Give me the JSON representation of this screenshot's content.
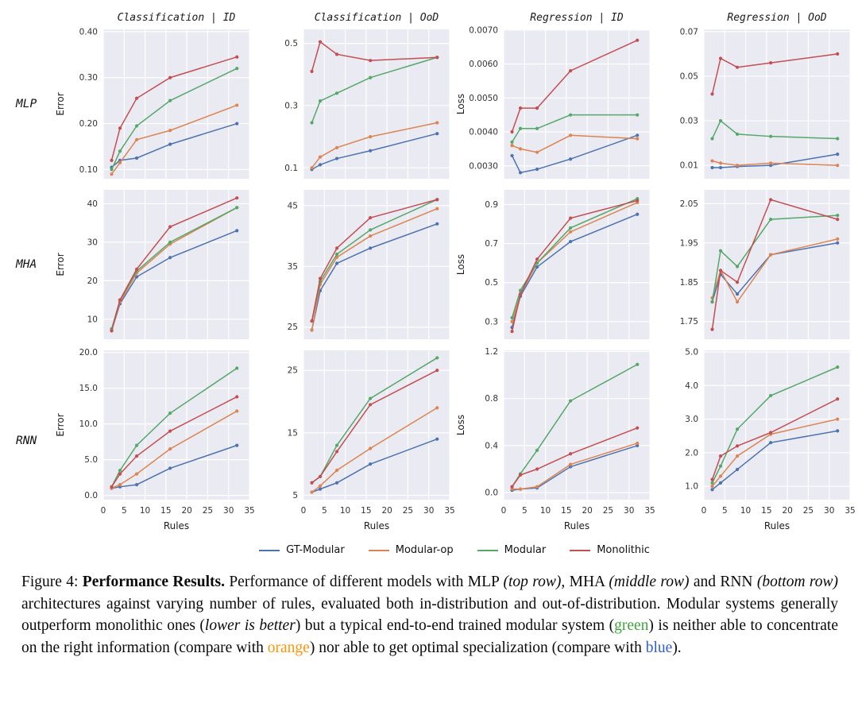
{
  "figure": {
    "row_labels": [
      "MLP",
      "MHA",
      "RNN"
    ],
    "column_titles": [
      "Classification | ID",
      "Classification | OoD",
      "Regression | ID",
      "Regression | OoD"
    ]
  },
  "legend": {
    "items": [
      {
        "label": "GT-Modular",
        "color": "#4C72B0"
      },
      {
        "label": "Modular-op",
        "color": "#DD8452"
      },
      {
        "label": "Modular",
        "color": "#55A868"
      },
      {
        "label": "Monolithic",
        "color": "#C44E52"
      }
    ]
  },
  "chart_data": {
    "type": "line",
    "x_label": "Rules",
    "x": [
      2,
      4,
      8,
      16,
      32
    ],
    "x_ticks": [
      0,
      5,
      10,
      15,
      20,
      25,
      30,
      35
    ],
    "xlim": [
      0,
      35
    ],
    "grid": true,
    "plot_bg": "#EAEAF2",
    "grid_color": "#FFFFFF",
    "series_names": [
      "GT-Modular",
      "Modular-op",
      "Modular",
      "Monolithic"
    ],
    "series_colors": [
      "#4C72B0",
      "#DD8452",
      "#55A868",
      "#C44E52"
    ],
    "plots": [
      {
        "row": "MLP",
        "col": "Classification | ID",
        "ylabel": "Error",
        "yticks": [
          "0.10",
          "0.20",
          "0.30",
          "0.40"
        ],
        "ylim": [
          0.08,
          0.405
        ],
        "series": [
          [
            0.105,
            0.12,
            0.125,
            0.155,
            0.2
          ],
          [
            0.09,
            0.115,
            0.165,
            0.185,
            0.24
          ],
          [
            0.1,
            0.14,
            0.195,
            0.25,
            0.32
          ],
          [
            0.12,
            0.19,
            0.255,
            0.3,
            0.345
          ]
        ]
      },
      {
        "row": "MLP",
        "col": "Classification | OoD",
        "ylabel": null,
        "yticks": [
          "0.1",
          "0.3",
          "0.5"
        ],
        "ylim": [
          0.065,
          0.545
        ],
        "series": [
          [
            0.095,
            0.11,
            0.13,
            0.155,
            0.21
          ],
          [
            0.1,
            0.135,
            0.165,
            0.2,
            0.245
          ],
          [
            0.245,
            0.315,
            0.34,
            0.39,
            0.455
          ],
          [
            0.41,
            0.505,
            0.465,
            0.445,
            0.455
          ]
        ]
      },
      {
        "row": "MLP",
        "col": "Regression | ID",
        "ylabel": "Loss",
        "yticks": [
          "0.0030",
          "0.0040",
          "0.0050",
          "0.0060",
          "0.0070"
        ],
        "ylim": [
          0.00262,
          0.00702
        ],
        "series": [
          [
            0.0033,
            0.0028,
            0.0029,
            0.0032,
            0.0039
          ],
          [
            0.0036,
            0.0035,
            0.0034,
            0.0039,
            0.0038
          ],
          [
            0.0037,
            0.0041,
            0.0041,
            0.0045,
            0.0045
          ],
          [
            0.004,
            0.0047,
            0.0047,
            0.0058,
            0.0067
          ]
        ]
      },
      {
        "row": "MLP",
        "col": "Regression | OoD",
        "ylabel": null,
        "yticks": [
          "0.01",
          "0.03",
          "0.05",
          "0.07"
        ],
        "ylim": [
          0.004,
          0.071
        ],
        "series": [
          [
            0.009,
            0.009,
            0.0095,
            0.01,
            0.015
          ],
          [
            0.012,
            0.011,
            0.01,
            0.011,
            0.01
          ],
          [
            0.022,
            0.03,
            0.024,
            0.023,
            0.022
          ],
          [
            0.042,
            0.058,
            0.054,
            0.056,
            0.06
          ]
        ]
      },
      {
        "row": "MHA",
        "col": "Classification | ID",
        "ylabel": "Error",
        "yticks": [
          "10",
          "20",
          "30",
          "40"
        ],
        "ylim": [
          4.8,
          43.6
        ],
        "series": [
          [
            7,
            14,
            21,
            26,
            33
          ],
          [
            7,
            14.5,
            22,
            29.5,
            39
          ],
          [
            7.5,
            15,
            22.5,
            30,
            39
          ],
          [
            7,
            15,
            23,
            34,
            41.5
          ]
        ]
      },
      {
        "row": "MHA",
        "col": "Classification | OoD",
        "ylabel": null,
        "yticks": [
          "25",
          "35",
          "45"
        ],
        "ylim": [
          23,
          47.6
        ],
        "series": [
          [
            24.5,
            31,
            35.5,
            38,
            42
          ],
          [
            24.5,
            32,
            36.5,
            40,
            44.5
          ],
          [
            26,
            32.5,
            37,
            41,
            46
          ],
          [
            26,
            33,
            38,
            43,
            46
          ]
        ]
      },
      {
        "row": "MHA",
        "col": "Regression | ID",
        "ylabel": "Loss",
        "yticks": [
          "0.3",
          "0.5",
          "0.7",
          "0.9"
        ],
        "ylim": [
          0.21,
          0.975
        ],
        "series": [
          [
            0.27,
            0.43,
            0.58,
            0.71,
            0.85
          ],
          [
            0.3,
            0.44,
            0.6,
            0.76,
            0.91
          ],
          [
            0.32,
            0.46,
            0.6,
            0.78,
            0.93
          ],
          [
            0.25,
            0.44,
            0.62,
            0.83,
            0.92
          ]
        ]
      },
      {
        "row": "MHA",
        "col": "Regression | OoD",
        "ylabel": null,
        "yticks": [
          "1.75",
          "1.85",
          "1.95",
          "2.05"
        ],
        "ylim": [
          1.705,
          2.085
        ],
        "series": [
          [
            1.8,
            1.87,
            1.82,
            1.92,
            1.95
          ],
          [
            1.81,
            1.88,
            1.8,
            1.92,
            1.96
          ],
          [
            1.8,
            1.93,
            1.89,
            2.01,
            2.02
          ],
          [
            1.73,
            1.88,
            1.85,
            2.06,
            2.01
          ]
        ]
      },
      {
        "row": "RNN",
        "col": "Classification | ID",
        "ylabel": "Error",
        "yticks": [
          "0.0",
          "5.0",
          "10.0",
          "15.0",
          "20.0"
        ],
        "ylim": [
          -0.6,
          20.3
        ],
        "series": [
          [
            1.0,
            1.2,
            1.5,
            3.8,
            7.0
          ],
          [
            1.0,
            1.5,
            3.0,
            6.5,
            11.8
          ],
          [
            1.2,
            3.5,
            7.0,
            11.5,
            17.8
          ],
          [
            1.2,
            3.0,
            5.5,
            9.0,
            13.8
          ]
        ]
      },
      {
        "row": "RNN",
        "col": "Classification | OoD",
        "ylabel": null,
        "yticks": [
          "5",
          "15",
          "25"
        ],
        "ylim": [
          4.3,
          28.2
        ],
        "series": [
          [
            5.5,
            6.0,
            7.0,
            10.0,
            14.0
          ],
          [
            5.5,
            6.5,
            9.0,
            12.5,
            19.0
          ],
          [
            7.0,
            8.0,
            13.0,
            20.5,
            27.0
          ],
          [
            7.0,
            8.0,
            12.0,
            19.5,
            25.0
          ]
        ]
      },
      {
        "row": "RNN",
        "col": "Regression | ID",
        "ylabel": "Loss",
        "yticks": [
          "0.0",
          "0.4",
          "0.8",
          "1.2"
        ],
        "ylim": [
          -0.06,
          1.21
        ],
        "series": [
          [
            0.02,
            0.03,
            0.04,
            0.22,
            0.4
          ],
          [
            0.03,
            0.03,
            0.05,
            0.24,
            0.42
          ],
          [
            0.05,
            0.16,
            0.36,
            0.78,
            1.09
          ],
          [
            0.05,
            0.15,
            0.2,
            0.33,
            0.55
          ]
        ]
      },
      {
        "row": "RNN",
        "col": "Regression | OoD",
        "ylabel": null,
        "yticks": [
          "1.0",
          "2.0",
          "3.0",
          "4.0",
          "5.0"
        ],
        "ylim": [
          0.6,
          5.05
        ],
        "series": [
          [
            0.9,
            1.1,
            1.5,
            2.3,
            2.65
          ],
          [
            1.0,
            1.3,
            1.9,
            2.55,
            3.0
          ],
          [
            1.1,
            1.6,
            2.7,
            3.7,
            4.55
          ],
          [
            1.2,
            1.9,
            2.2,
            2.6,
            3.6
          ]
        ]
      }
    ]
  },
  "caption": {
    "colors": {
      "green": "#3da53d",
      "orange": "#ff9408",
      "blue": "#2d5fd0"
    },
    "segments": [
      {
        "text": "Figure 4: ",
        "style": "normal"
      },
      {
        "text": "Performance Results.",
        "style": "bold"
      },
      {
        "text": "  Performance of different models with MLP ",
        "style": "normal"
      },
      {
        "text": "(top row)",
        "style": "italic"
      },
      {
        "text": ", MHA ",
        "style": "normal"
      },
      {
        "text": "(middle row)",
        "style": "italic"
      },
      {
        "text": " and RNN ",
        "style": "normal"
      },
      {
        "text": "(bottom row)",
        "style": "italic"
      },
      {
        "text": " architectures against varying number of rules, evaluated both in-distribution and out-of-distribution. Modular systems generally outperform monolithic ones (",
        "style": "normal"
      },
      {
        "text": "lower is better",
        "style": "italic"
      },
      {
        "text": ") but a typical end-to-end trained modular system (",
        "style": "normal"
      },
      {
        "text": "green",
        "style": "green"
      },
      {
        "text": ") is neither able to concentrate on the right information (compare with ",
        "style": "normal"
      },
      {
        "text": "orange",
        "style": "orange"
      },
      {
        "text": ") nor able to get optimal specialization (compare with ",
        "style": "normal"
      },
      {
        "text": "blue",
        "style": "blue"
      },
      {
        "text": ").",
        "style": "normal"
      }
    ]
  }
}
